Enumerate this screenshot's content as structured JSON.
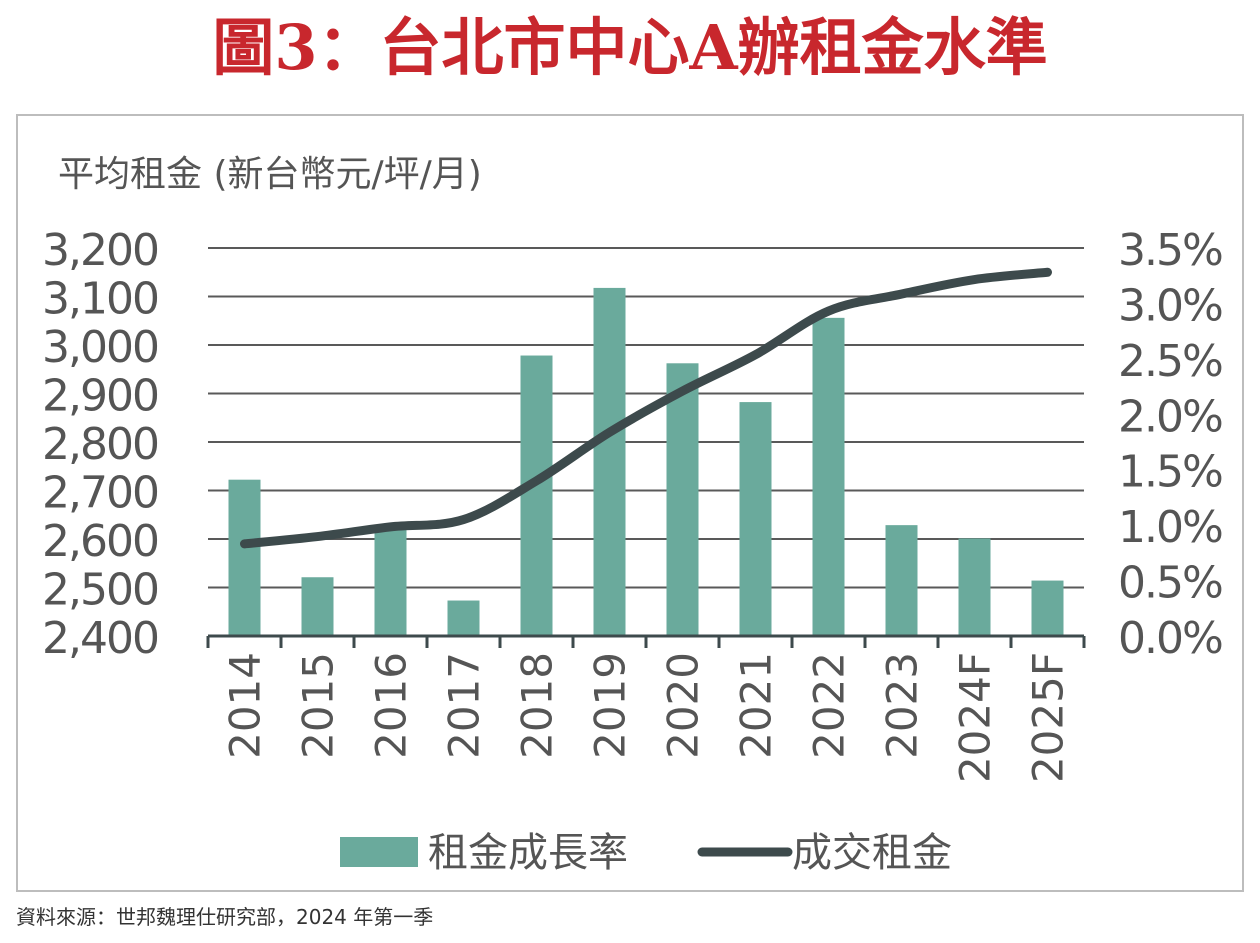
{
  "title": "圖3：台北市中心A辦租金水準",
  "source": "資料來源：世邦魏理仕研究部，2024 年第一季",
  "colors": {
    "title": "#c8272d",
    "bar": "#6aaa9c",
    "line": "#3d4a4c",
    "grid": "#595959",
    "text": "#555555"
  },
  "chart_data": {
    "type": "bar+line",
    "categories": [
      "2014",
      "2015",
      "2016",
      "2017",
      "2018",
      "2019",
      "2020",
      "2021",
      "2022",
      "2023",
      "2024F",
      "2025F"
    ],
    "ylabel": "平均租金 (新台幣元/坪/月)",
    "yticks_left": [
      "3,200",
      "3,100",
      "3,000",
      "2,900",
      "2,800",
      "2,700",
      "2,600",
      "2,500",
      "2,400"
    ],
    "ylim_left": [
      2400,
      3200
    ],
    "yticks_right": [
      "3.5%",
      "3.0%",
      "2.5%",
      "2.0%",
      "1.5%",
      "1.0%",
      "0.5%",
      "0.0%"
    ],
    "ylim_right": [
      0,
      3.5
    ],
    "grid": true,
    "legend_position": "bottom",
    "series": [
      {
        "name": "租金成長率",
        "type": "bar",
        "axis": "right",
        "values": [
          1.41,
          0.53,
          1.0,
          0.32,
          2.53,
          3.14,
          2.46,
          2.11,
          2.87,
          1.0,
          0.88,
          0.5
        ]
      },
      {
        "name": "成交租金",
        "type": "line",
        "axis": "left",
        "values": [
          2590,
          2605,
          2625,
          2640,
          2720,
          2820,
          2905,
          2980,
          3070,
          3105,
          3135,
          3150
        ]
      }
    ]
  }
}
